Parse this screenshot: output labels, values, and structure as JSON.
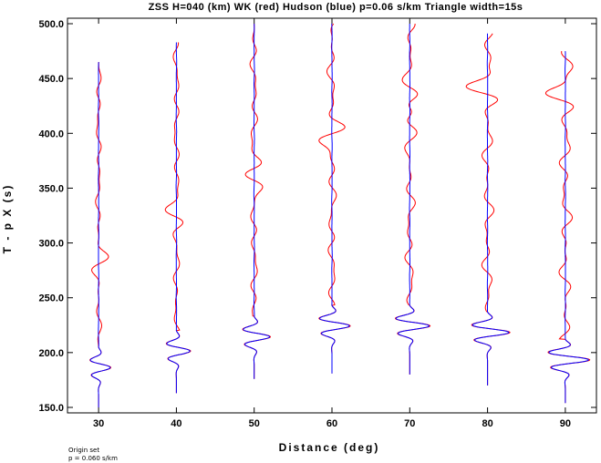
{
  "chart_data": {
    "type": "line",
    "title": "ZSS H=040 (km) WK (red) Hudson (blue) p=0.06 s/km Triangle width=15s",
    "xlabel": "Distance (deg)",
    "ylabel": "T - p X (s)",
    "xlim": [
      26,
      94
    ],
    "ylim": [
      145,
      505
    ],
    "xticks": [
      30,
      40,
      50,
      60,
      70,
      80,
      90
    ],
    "xtick_labels": [
      "30",
      "40",
      "50",
      "60",
      "70",
      "80",
      "90"
    ],
    "yticks": [
      150,
      200,
      250,
      300,
      350,
      400,
      450,
      500
    ],
    "ytick_labels": [
      "150.0",
      "200.0",
      "250.0",
      "300.0",
      "350.0",
      "400.0",
      "450.0",
      "500.0"
    ],
    "series": [
      {
        "name": "WK",
        "color": "#ff0000"
      },
      {
        "name": "Hudson",
        "color": "#0000ff"
      }
    ],
    "traces": [
      {
        "distance": 30,
        "t_start": 150,
        "t_end": 465,
        "first_arrival": 205
      },
      {
        "distance": 40,
        "t_start": 163,
        "t_end": 483,
        "first_arrival": 220
      },
      {
        "distance": 50,
        "t_start": 176,
        "t_end": 500,
        "first_arrival": 233
      },
      {
        "distance": 60,
        "t_start": 181,
        "t_end": 500,
        "first_arrival": 243
      },
      {
        "distance": 70,
        "t_start": 180,
        "t_end": 500,
        "first_arrival": 243
      },
      {
        "distance": 80,
        "t_start": 170,
        "t_end": 491,
        "first_arrival": 237
      },
      {
        "distance": 90,
        "t_start": 154,
        "t_end": 475,
        "first_arrival": 212
      }
    ],
    "grid": false,
    "legend": "none"
  },
  "notes": [
    "Origin set",
    "p = 0.060 s/km"
  ]
}
